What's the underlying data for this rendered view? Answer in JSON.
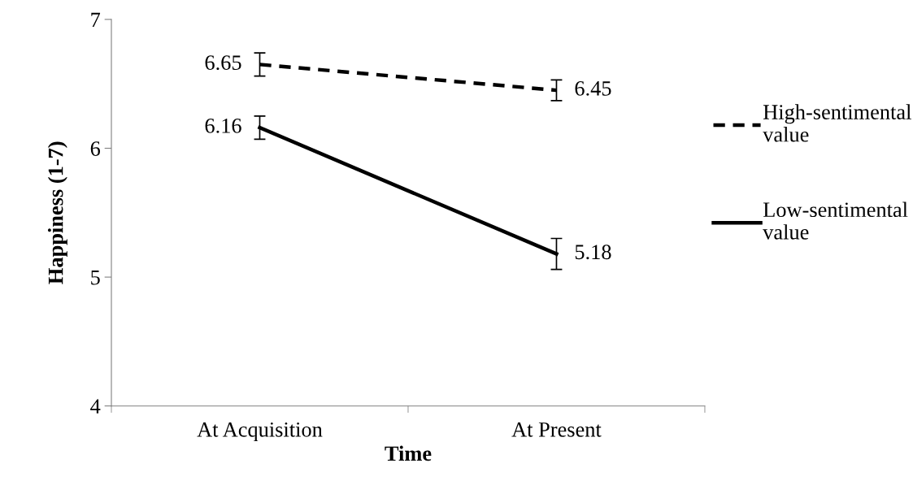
{
  "chart_data": {
    "type": "line",
    "xlabel": "Time",
    "ylabel": "Happiness (1-7)",
    "categories": [
      "At Acquisition",
      "At Present"
    ],
    "series": [
      {
        "name": "High-sentimental value",
        "color": "#000000",
        "values": [
          6.65,
          6.45
        ],
        "errors": [
          0.09,
          0.08
        ],
        "line_style": "dashed"
      },
      {
        "name": "Low-sentimental value",
        "color": "#000000",
        "values": [
          6.16,
          5.18
        ],
        "errors": [
          0.09,
          0.12
        ],
        "line_style": "solid"
      }
    ],
    "ylim": [
      4,
      7
    ],
    "yticks": [
      4,
      5,
      6,
      7
    ],
    "data_labels": true,
    "grid": false,
    "legend": "right",
    "marker": "none"
  }
}
